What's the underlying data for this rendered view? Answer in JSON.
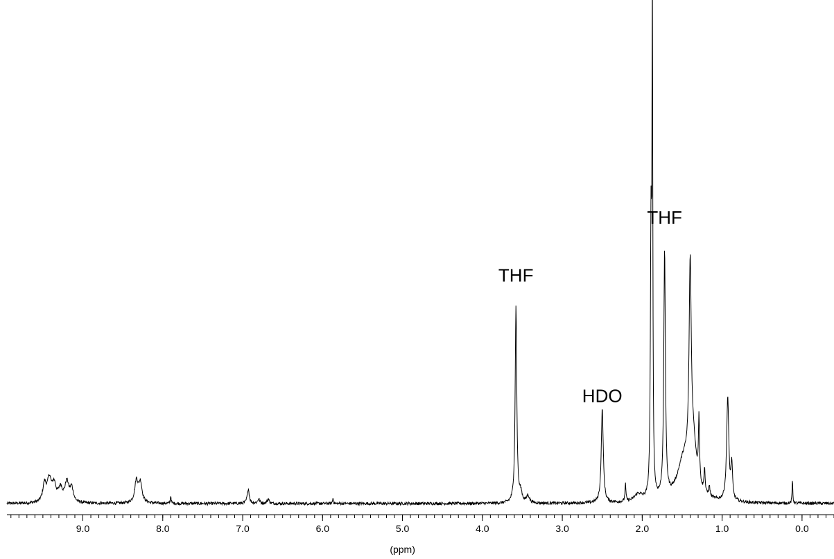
{
  "chart_data": {
    "type": "line",
    "title": "",
    "xlabel": "(ppm)",
    "ylabel": "",
    "x_reversed": true,
    "xlim": [
      -0.4,
      9.95
    ],
    "ylim": [
      -0.02,
      1.0
    ],
    "major_ticks": [
      9.0,
      8.0,
      7.0,
      6.0,
      5.0,
      4.0,
      3.0,
      2.0,
      1.0,
      0.0
    ],
    "tick_labels": [
      "9.0",
      "8.0",
      "7.0",
      "6.0",
      "5.0",
      "4.0",
      "3.0",
      "2.0",
      "1.0",
      "0.0"
    ],
    "minor_tick_step": 0.1,
    "grid": false,
    "series": [
      {
        "peaks": [
          {
            "ppm": 9.48,
            "height": 0.036,
            "width": 0.025
          },
          {
            "ppm": 9.42,
            "height": 0.045,
            "width": 0.03
          },
          {
            "ppm": 9.36,
            "height": 0.034,
            "width": 0.03
          },
          {
            "ppm": 9.28,
            "height": 0.027,
            "width": 0.03
          },
          {
            "ppm": 9.2,
            "height": 0.04,
            "width": 0.03
          },
          {
            "ppm": 9.14,
            "height": 0.028,
            "width": 0.025
          },
          {
            "ppm": 8.33,
            "height": 0.044,
            "width": 0.025
          },
          {
            "ppm": 8.28,
            "height": 0.04,
            "width": 0.025
          },
          {
            "ppm": 7.9,
            "height": 0.016,
            "width": 0.006
          },
          {
            "ppm": 6.93,
            "height": 0.03,
            "width": 0.015
          },
          {
            "ppm": 6.8,
            "height": 0.009,
            "width": 0.015
          },
          {
            "ppm": 6.68,
            "height": 0.009,
            "width": 0.015
          },
          {
            "ppm": 5.87,
            "height": 0.011,
            "width": 0.006
          },
          {
            "ppm": 3.58,
            "height": 0.4,
            "width": 0.012
          },
          {
            "ppm": 3.52,
            "height": 0.018,
            "width": 0.02
          },
          {
            "ppm": 3.43,
            "height": 0.015,
            "width": 0.02
          },
          {
            "ppm": 2.5,
            "height": 0.19,
            "width": 0.015
          },
          {
            "ppm": 2.21,
            "height": 0.035,
            "width": 0.007
          },
          {
            "ppm": 2.05,
            "height": 0.015,
            "width": 0.06
          },
          {
            "ppm": 1.89,
            "height": 0.52,
            "width": 0.009
          },
          {
            "ppm": 1.873,
            "height": 0.99,
            "width": 0.006
          },
          {
            "ppm": 1.72,
            "height": 0.5,
            "width": 0.012
          },
          {
            "ppm": 1.48,
            "height": 0.08,
            "width": 0.1
          },
          {
            "ppm": 1.4,
            "height": 0.4,
            "width": 0.016
          },
          {
            "ppm": 1.36,
            "height": 0.09,
            "width": 0.05
          },
          {
            "ppm": 1.29,
            "height": 0.13,
            "width": 0.008
          },
          {
            "ppm": 1.22,
            "height": 0.05,
            "width": 0.008
          },
          {
            "ppm": 1.16,
            "height": 0.02,
            "width": 0.01
          },
          {
            "ppm": 0.93,
            "height": 0.21,
            "width": 0.016
          },
          {
            "ppm": 0.88,
            "height": 0.07,
            "width": 0.012
          },
          {
            "ppm": 0.12,
            "height": 0.05,
            "width": 0.005
          }
        ]
      }
    ],
    "annotations": [
      {
        "text": "THF",
        "ppm": 3.58,
        "height": 0.448
      },
      {
        "text": "HDO",
        "ppm": 2.5,
        "height": 0.205
      },
      {
        "text": "THF",
        "ppm": 1.72,
        "height": 0.565
      }
    ]
  }
}
